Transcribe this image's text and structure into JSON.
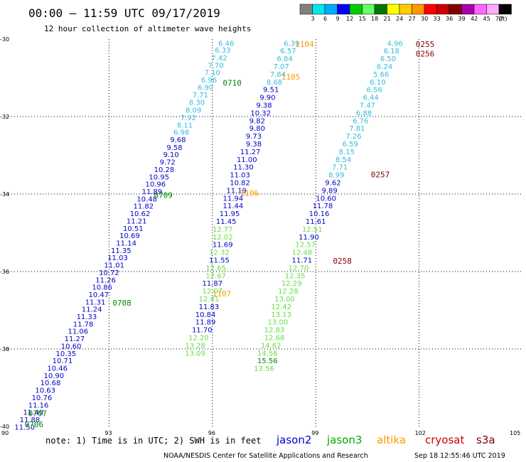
{
  "chart_data": {
    "type": "scatter",
    "title": "00:00 – 11:59 UTC 09/17/2019",
    "subtitle": "12 hour collection of altimeter wave heights",
    "xlim": [
      90,
      105
    ],
    "ylim": [
      -40,
      -30
    ],
    "x_ticks": [
      "90",
      "93",
      "96",
      "99",
      "102",
      "105"
    ],
    "y_ticks": [
      "-30",
      "-32",
      "-34",
      "-36",
      "-38",
      "-40"
    ],
    "colorbar": {
      "labels": [
        "3",
        "6",
        "9",
        "12",
        "15",
        "18",
        "21",
        "24",
        "27",
        "30",
        "33",
        "36",
        "39",
        "42",
        "45",
        "70"
      ],
      "unit": "(ft)",
      "colors": [
        "#808080",
        "#00e8e8",
        "#00aaff",
        "#0000ff",
        "#00cc00",
        "#66ff66",
        "#007700",
        "#ffff00",
        "#ffcc00",
        "#ff9900",
        "#ff0000",
        "#cc0000",
        "#800000",
        "#aa00aa",
        "#ff66ff",
        "#ffaaff",
        "#000000"
      ]
    },
    "series": [
      {
        "name": "jason2",
        "color": "#0000cc",
        "points": []
      },
      {
        "name": "jason3",
        "color": "#00aa00",
        "points": []
      },
      {
        "name": "altika",
        "color": "#ff9900",
        "points": []
      },
      {
        "name": "cryosat",
        "color": "#cc0000",
        "points": []
      },
      {
        "name": "s3a",
        "color": "#800000",
        "points": []
      }
    ],
    "tracks": [
      {
        "values": [
          [
            96.4,
            -30.17,
            "6.46"
          ],
          [
            96.3,
            -30.35,
            "6.33"
          ],
          [
            96.2,
            -30.55,
            "7.42"
          ],
          [
            96.1,
            -30.74,
            "7.70"
          ],
          [
            96.0,
            -30.93,
            "7.10"
          ],
          [
            95.9,
            -31.12,
            "6.96"
          ],
          [
            95.8,
            -31.31,
            "6.90"
          ],
          [
            95.65,
            -31.5,
            "7.71"
          ],
          [
            95.55,
            -31.7,
            "8.30"
          ],
          [
            95.45,
            -31.9,
            "8.09"
          ],
          [
            95.3,
            -32.09,
            "7.92"
          ],
          [
            95.2,
            -32.28,
            "8.11"
          ],
          [
            95.1,
            -32.47,
            "6.98"
          ],
          [
            95.0,
            -32.66,
            "9.68"
          ],
          [
            94.9,
            -32.86,
            "9.58"
          ],
          [
            94.8,
            -33.05,
            "9.10"
          ],
          [
            94.7,
            -33.24,
            "9.72"
          ],
          [
            94.6,
            -33.43,
            "10.28"
          ],
          [
            94.45,
            -33.62,
            "10.95"
          ],
          [
            94.35,
            -33.81,
            "10.96"
          ],
          [
            94.25,
            -34.0,
            "11.89"
          ],
          [
            94.1,
            -34.19,
            "10.48"
          ],
          [
            94.0,
            -34.38,
            "11.82"
          ],
          [
            93.9,
            -34.57,
            "10.62"
          ],
          [
            93.8,
            -34.76,
            "11.21"
          ],
          [
            93.7,
            -34.95,
            "10.51"
          ],
          [
            93.6,
            -35.14,
            "10.69"
          ],
          [
            93.5,
            -35.33,
            "11.14"
          ],
          [
            93.35,
            -35.52,
            "11.35"
          ],
          [
            93.25,
            -35.71,
            "11.03"
          ],
          [
            93.15,
            -35.9,
            "11.01"
          ],
          [
            93.0,
            -36.09,
            "10.72"
          ],
          [
            92.9,
            -36.28,
            "11.26"
          ],
          [
            92.8,
            -36.47,
            "10.86"
          ],
          [
            92.7,
            -36.66,
            "10.47"
          ],
          [
            92.6,
            -36.85,
            "11.31"
          ],
          [
            92.5,
            -37.04,
            "11.24"
          ],
          [
            92.35,
            -37.23,
            "11.33"
          ],
          [
            92.25,
            -37.42,
            "11.78"
          ],
          [
            92.1,
            -37.61,
            "11.06"
          ],
          [
            92.0,
            -37.8,
            "11.27"
          ],
          [
            91.9,
            -37.99,
            "10.60"
          ],
          [
            91.75,
            -38.18,
            "10.35"
          ],
          [
            91.65,
            -38.37,
            "10.71"
          ],
          [
            91.5,
            -38.56,
            "10.46"
          ],
          [
            91.4,
            -38.75,
            "10.90"
          ],
          [
            91.3,
            -38.94,
            "10.68"
          ],
          [
            91.15,
            -39.13,
            "10.63"
          ],
          [
            91.05,
            -39.32,
            "10.76"
          ],
          [
            90.95,
            -39.51,
            "11.16"
          ],
          [
            90.8,
            -39.7,
            "11.40"
          ],
          [
            90.7,
            -39.89,
            "11.88"
          ],
          [
            90.55,
            -40.08,
            "11.50"
          ]
        ],
        "times": [
          [
            96.3,
            -31.2,
            "0710"
          ],
          [
            94.3,
            -34.1,
            "0709"
          ],
          [
            93.1,
            -36.88,
            "0708"
          ],
          [
            90.65,
            -39.73,
            "0707"
          ],
          [
            90.55,
            -40.02,
            "0706"
          ]
        ]
      },
      {
        "values": [
          [
            98.3,
            -30.17,
            "6.39"
          ],
          [
            98.2,
            -30.37,
            "6.57"
          ],
          [
            98.1,
            -30.57,
            "6.84"
          ],
          [
            98.0,
            -30.77,
            "7.07"
          ],
          [
            97.9,
            -30.97,
            "7.84"
          ],
          [
            97.8,
            -31.17,
            "8.68"
          ],
          [
            97.7,
            -31.37,
            "9.51"
          ],
          [
            97.6,
            -31.57,
            "9.90"
          ],
          [
            97.5,
            -31.77,
            "9.38"
          ],
          [
            97.4,
            -31.97,
            "10.32"
          ],
          [
            97.3,
            -32.17,
            "9.82"
          ],
          [
            97.3,
            -32.37,
            "9.80"
          ],
          [
            97.2,
            -32.57,
            "9.73"
          ],
          [
            97.2,
            -32.77,
            "9.38"
          ],
          [
            97.1,
            -32.97,
            "11.27"
          ],
          [
            97.0,
            -33.17,
            "11.00"
          ],
          [
            96.9,
            -33.37,
            "11.30"
          ],
          [
            96.8,
            -33.57,
            "11.03"
          ],
          [
            96.8,
            -33.77,
            "10.82"
          ],
          [
            96.7,
            -33.97,
            "11.19"
          ],
          [
            96.6,
            -34.17,
            "11.94"
          ],
          [
            96.6,
            -34.37,
            "11.44"
          ],
          [
            96.5,
            -34.57,
            "11.95"
          ],
          [
            96.4,
            -34.77,
            "11.45"
          ],
          [
            96.3,
            -34.97,
            "12.77"
          ],
          [
            96.3,
            -35.17,
            "12.02"
          ],
          [
            96.3,
            -35.37,
            "11.69"
          ],
          [
            96.2,
            -35.57,
            "12.32"
          ],
          [
            96.2,
            -35.77,
            "11.55"
          ],
          [
            96.1,
            -35.97,
            "12.65"
          ],
          [
            96.1,
            -36.17,
            "12.67"
          ],
          [
            96.0,
            -36.37,
            "11.87"
          ],
          [
            96.0,
            -36.57,
            "12.07"
          ],
          [
            95.9,
            -36.77,
            "12.41"
          ],
          [
            95.9,
            -36.97,
            "11.83"
          ],
          [
            95.8,
            -37.17,
            "10.84"
          ],
          [
            95.8,
            -37.37,
            "11.89"
          ],
          [
            95.7,
            -37.57,
            "11.70"
          ],
          [
            95.6,
            -37.77,
            "12.20"
          ],
          [
            95.5,
            -37.97,
            "13.28"
          ],
          [
            95.5,
            -38.17,
            "13.09"
          ]
        ],
        "times": [
          [
            98.4,
            -30.2,
            "1104"
          ],
          [
            98.0,
            -31.05,
            "1105"
          ],
          [
            96.8,
            -34.05,
            "1106"
          ],
          [
            96.0,
            -36.64,
            "1107"
          ]
        ]
      },
      {
        "values": [
          [
            101.3,
            -30.17,
            "4.96"
          ],
          [
            101.2,
            -30.37,
            "6.18"
          ],
          [
            101.1,
            -30.57,
            "6.50"
          ],
          [
            101.0,
            -30.77,
            "6.24"
          ],
          [
            100.9,
            -30.97,
            "5.66"
          ],
          [
            100.8,
            -31.17,
            "6.10"
          ],
          [
            100.7,
            -31.37,
            "6.56"
          ],
          [
            100.6,
            -31.57,
            "6.44"
          ],
          [
            100.5,
            -31.77,
            "7.47"
          ],
          [
            100.4,
            -31.97,
            "6.88"
          ],
          [
            100.3,
            -32.17,
            "6.76"
          ],
          [
            100.2,
            -32.37,
            "7.81"
          ],
          [
            100.1,
            -32.57,
            "7.26"
          ],
          [
            100.0,
            -32.77,
            "6.59"
          ],
          [
            99.9,
            -32.97,
            "8.15"
          ],
          [
            99.8,
            -33.17,
            "8.54"
          ],
          [
            99.7,
            -33.37,
            "7.71"
          ],
          [
            99.6,
            -33.57,
            "8.99"
          ],
          [
            99.5,
            -33.77,
            "9.62"
          ],
          [
            99.4,
            -33.97,
            "9.89"
          ],
          [
            99.3,
            -34.17,
            "10.60"
          ],
          [
            99.2,
            -34.37,
            "11.78"
          ],
          [
            99.1,
            -34.57,
            "10.16"
          ],
          [
            99.0,
            -34.77,
            "11.61"
          ],
          [
            98.9,
            -34.97,
            "12.51"
          ],
          [
            98.8,
            -35.17,
            "11.90"
          ],
          [
            98.7,
            -35.37,
            "12.57"
          ],
          [
            98.6,
            -35.57,
            "12.48"
          ],
          [
            98.6,
            -35.77,
            "11.71"
          ],
          [
            98.5,
            -35.97,
            "12.70"
          ],
          [
            98.4,
            -36.17,
            "12.35"
          ],
          [
            98.3,
            -36.37,
            "12.29"
          ],
          [
            98.2,
            -36.57,
            "12.28"
          ],
          [
            98.1,
            -36.77,
            "13.00"
          ],
          [
            98.0,
            -36.97,
            "12.42"
          ],
          [
            98.0,
            -37.17,
            "13.13"
          ],
          [
            97.9,
            -37.37,
            "13.00"
          ],
          [
            97.8,
            -37.57,
            "12.83"
          ],
          [
            97.8,
            -37.77,
            "12.68"
          ],
          [
            97.7,
            -37.97,
            "14.62"
          ],
          [
            97.6,
            -38.17,
            "14.56"
          ],
          [
            97.6,
            -38.37,
            "15.56"
          ],
          [
            97.5,
            -38.57,
            "13.56"
          ]
        ],
        "times": [
          [
            101.9,
            -30.2,
            "0255"
          ],
          [
            101.9,
            -30.45,
            "0256"
          ],
          [
            100.6,
            -33.57,
            "0257"
          ],
          [
            99.5,
            -35.8,
            "0258"
          ]
        ]
      }
    ]
  },
  "labels": {
    "title": "00:00 – 11:59 UTC 09/17/2019",
    "subtitle": "12 hour collection of altimeter wave heights",
    "note": "note: 1) Time is in UTC; 2) SWH is in feet",
    "footer_left": "NOAA/NESDIS Center for Satellite Applications and Research",
    "footer_right": "Sep 18 12:55:46 UTC 2019"
  },
  "legend": [
    {
      "name": "jason2",
      "color": "#0000cc"
    },
    {
      "name": "jason3",
      "color": "#00aa00"
    },
    {
      "name": "altika",
      "color": "#ff9900"
    },
    {
      "name": "cryosat",
      "color": "#cc0000"
    },
    {
      "name": "s3a",
      "color": "#800000"
    }
  ],
  "colors": {
    "cyan": "#33bbdd",
    "blue": "#0000cc",
    "lightgreen": "#66dd44",
    "darkgreen": "#008800",
    "orange": "#ff9900",
    "maroon": "#800000"
  }
}
